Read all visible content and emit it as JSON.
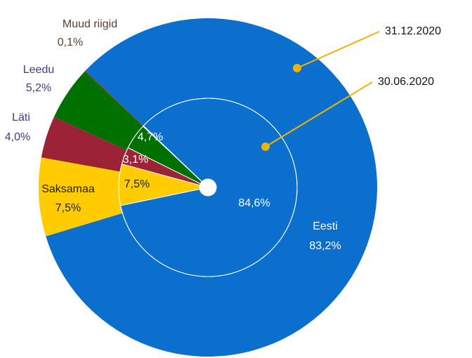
{
  "chart_data": {
    "type": "nested-pie",
    "categories": [
      "Eesti",
      "Saksamaa",
      "Läti",
      "Leedu",
      "Muud riigid"
    ],
    "colors": [
      "#0b6fce",
      "#ffcc00",
      "#9b2335",
      "#007000",
      "#7a3b2e"
    ],
    "series": [
      {
        "name": "31.12.2020",
        "values": [
          83.2,
          7.5,
          4.0,
          5.2,
          0.1
        ],
        "value_labels": [
          "83,2%",
          "7,5%",
          "4,0%",
          "5,2%",
          "0,1%"
        ]
      },
      {
        "name": "30.06.2020",
        "values": [
          84.6,
          7.5,
          3.1,
          4.7,
          0.1
        ],
        "value_labels": [
          "84,6%",
          "7,5%",
          "3,1%",
          "4,7%",
          null
        ]
      }
    ]
  }
}
